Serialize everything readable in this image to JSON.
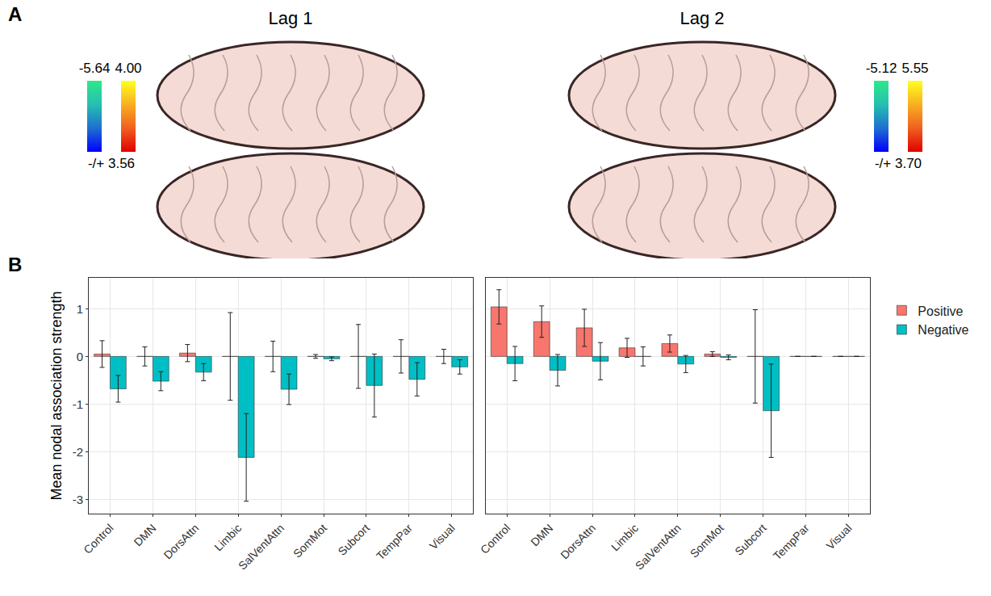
{
  "figure": {
    "panel_labels": [
      "A",
      "B"
    ],
    "brain_maps": [
      {
        "title": "Lag 1",
        "negative": {
          "top": "-5.64",
          "colors": [
            "#0000ff",
            "#1f6fd0",
            "#25c0b0",
            "#2ee88a"
          ]
        },
        "positive": {
          "top": "4.00",
          "colors": [
            "#e00000",
            "#f06020",
            "#f8b020",
            "#ffff20"
          ]
        },
        "bottom": "-/+ 3.56"
      },
      {
        "title": "Lag 2",
        "negative": {
          "top": "-5.12",
          "colors": [
            "#0000ff",
            "#1f6fd0",
            "#25c0b0",
            "#2ee88a"
          ]
        },
        "positive": {
          "top": "5.55",
          "colors": [
            "#e00000",
            "#f06020",
            "#f8b020",
            "#ffff20"
          ]
        },
        "bottom": "-/+ 3.70"
      }
    ]
  },
  "chart_data": [
    {
      "type": "bar",
      "y_label": "Mean nodal association strength",
      "categories": [
        "Control",
        "DMN",
        "DorsAttn",
        "Limbic",
        "SalVentAttn",
        "SomMot",
        "Subcort",
        "TempPar",
        "Visual"
      ],
      "series": [
        {
          "name": "Positive",
          "color": "#F8766D",
          "values": [
            0.05,
            0,
            0.07,
            0,
            0,
            0,
            0,
            0,
            0
          ],
          "errors": [
            0.28,
            0.2,
            0.18,
            0.92,
            0.32,
            0.04,
            0.67,
            0.35,
            0.15
          ]
        },
        {
          "name": "Negative",
          "color": "#00BFC4",
          "values": [
            -0.68,
            -0.52,
            -0.33,
            -2.12,
            -0.69,
            -0.05,
            -0.61,
            -0.48,
            -0.22
          ],
          "errors": [
            0.28,
            0.2,
            0.18,
            0.92,
            0.32,
            0.04,
            0.66,
            0.35,
            0.15
          ]
        }
      ],
      "ylim": [
        -3.3,
        1.65
      ],
      "yticks": [
        -3,
        -2,
        -1,
        0,
        1
      ],
      "grid": true
    },
    {
      "type": "bar",
      "categories": [
        "Control",
        "DMN",
        "DorsAttn",
        "Limbic",
        "SalVentAttn",
        "SomMot",
        "Subcort",
        "TempPar",
        "Visual"
      ],
      "series": [
        {
          "name": "Positive",
          "color": "#F8766D",
          "values": [
            1.04,
            0.73,
            0.6,
            0.18,
            0.27,
            0.05,
            0,
            0,
            0
          ],
          "errors": [
            0.36,
            0.33,
            0.39,
            0.2,
            0.18,
            0.05,
            0.98,
            0,
            0
          ]
        },
        {
          "name": "Negative",
          "color": "#00BFC4",
          "values": [
            -0.15,
            -0.29,
            -0.1,
            0,
            -0.16,
            -0.02,
            -1.14,
            0,
            0
          ],
          "errors": [
            0.36,
            0.33,
            0.39,
            0.2,
            0.18,
            0.05,
            0.98,
            0,
            0
          ]
        }
      ],
      "ylim": [
        -3.3,
        1.65
      ],
      "yticks": [
        -3,
        -2,
        -1,
        0,
        1
      ],
      "grid": true,
      "legend": "right"
    }
  ]
}
